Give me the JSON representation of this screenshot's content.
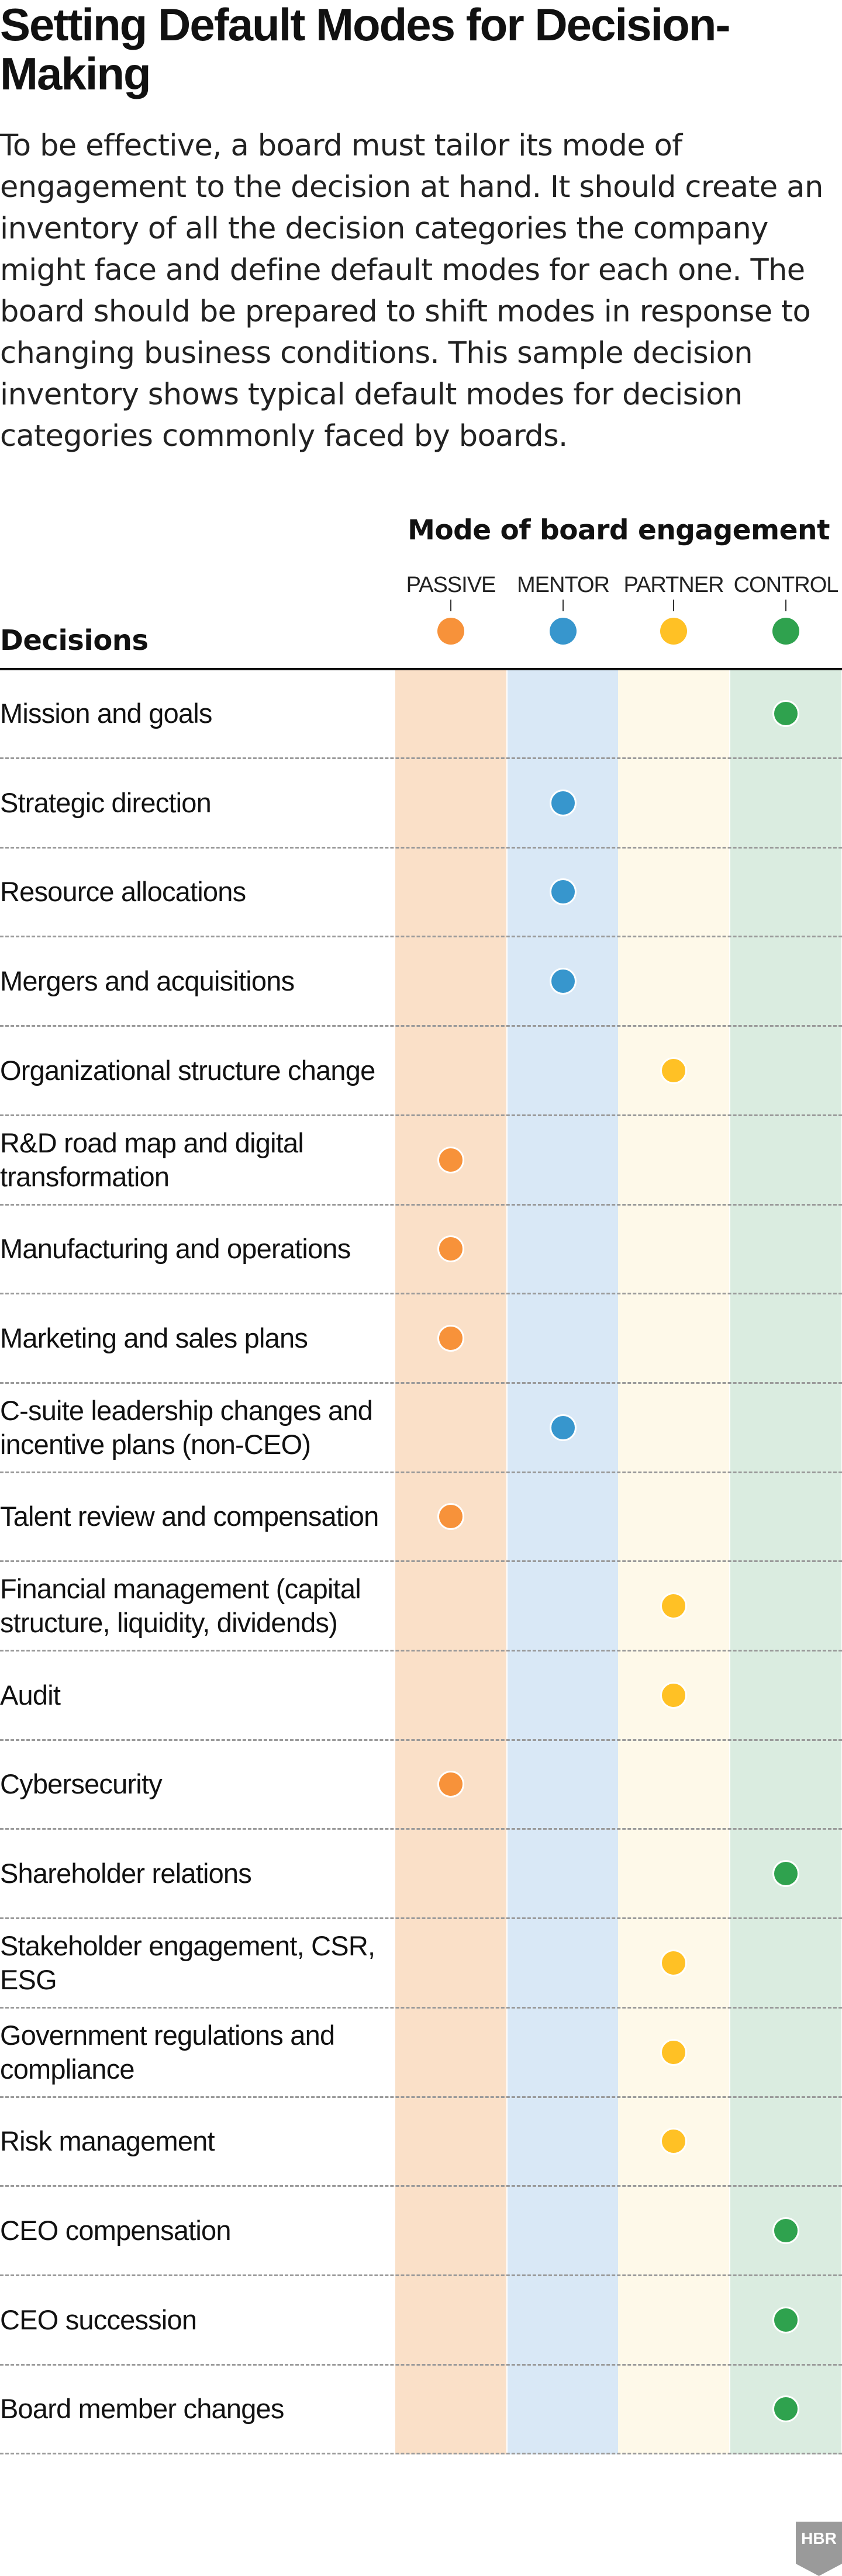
{
  "title": "Setting Default Modes for Decision-Making",
  "intro": "To be effective, a board must tailor its mode of engagement to the decision at hand. It should create an inventory of all the decision categories the company might face and define default modes for each one. The board should be prepared to shift modes in response to changing business conditions. This sample decision inventory shows typical default modes for decision categories commonly faced by boards.",
  "mode_heading": "Mode of board engagement",
  "decisions_heading": "Decisions",
  "modes": [
    {
      "key": "passive",
      "label": "PASSIVE",
      "color": "#f7923a",
      "band": "#fae0c8"
    },
    {
      "key": "mentor",
      "label": "MENTOR",
      "color": "#3796cd",
      "band": "#d9e8f6"
    },
    {
      "key": "partner",
      "label": "PARTNER",
      "color": "#ffc125",
      "band": "#fef9e9"
    },
    {
      "key": "control",
      "label": "CONTROL",
      "color": "#2fa24e",
      "band": "#daece0"
    }
  ],
  "decisions": [
    {
      "label": "Mission and goals",
      "mode": "control"
    },
    {
      "label": "Strategic direction",
      "mode": "mentor"
    },
    {
      "label": "Resource allocations",
      "mode": "mentor"
    },
    {
      "label": "Mergers and acquisitions",
      "mode": "mentor"
    },
    {
      "label": "Organizational structure change",
      "mode": "partner"
    },
    {
      "label": "R&D road map and digital transformation",
      "mode": "passive"
    },
    {
      "label": "Manufacturing and operations",
      "mode": "passive"
    },
    {
      "label": "Marketing and sales plans",
      "mode": "passive"
    },
    {
      "label": "C-suite leadership changes and incentive plans (non-CEO)",
      "mode": "mentor"
    },
    {
      "label": "Talent review and compensation",
      "mode": "passive"
    },
    {
      "label": "Financial management (capital structure, liquidity, dividends)",
      "mode": "partner"
    },
    {
      "label": "Audit",
      "mode": "partner"
    },
    {
      "label": "Cybersecurity",
      "mode": "passive"
    },
    {
      "label": "Shareholder relations",
      "mode": "control"
    },
    {
      "label": "Stakeholder engagement, CSR, ESG",
      "mode": "partner"
    },
    {
      "label": "Government regulations and compliance",
      "mode": "partner"
    },
    {
      "label": "Risk management",
      "mode": "partner"
    },
    {
      "label": "CEO compensation",
      "mode": "control"
    },
    {
      "label": "CEO succession",
      "mode": "control"
    },
    {
      "label": "Board member changes",
      "mode": "control"
    }
  ],
  "logo": {
    "text": "HBR",
    "color": "#9a9a9a"
  }
}
